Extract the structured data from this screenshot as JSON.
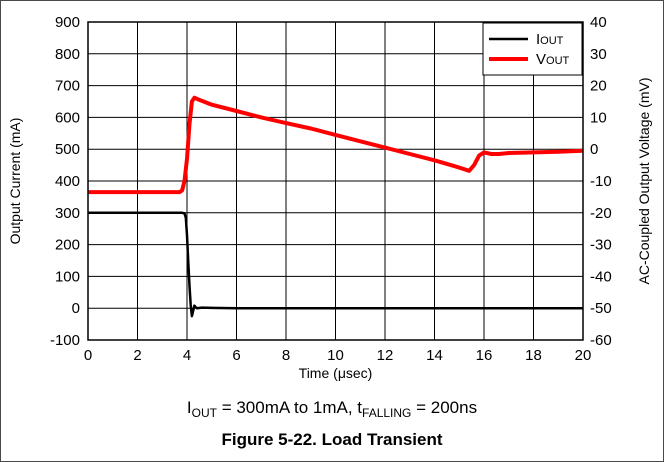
{
  "chart_data": {
    "type": "line",
    "xlabel_parts": [
      "Time (",
      "μ",
      "sec)"
    ],
    "ylabel_left": "Output Current (mA)",
    "ylabel_right": "AC-Coupled Output Voltage (mV)",
    "xlim": [
      0,
      20
    ],
    "ylim_left": [
      -100,
      900
    ],
    "ylim_right": [
      -60,
      40
    ],
    "xticks": [
      0,
      2,
      4,
      6,
      8,
      10,
      12,
      14,
      16,
      18,
      20
    ],
    "yticks_left": [
      -100,
      0,
      100,
      200,
      300,
      400,
      500,
      600,
      700,
      800,
      900
    ],
    "yticks_right": [
      -60,
      -50,
      -40,
      -30,
      -20,
      -10,
      0,
      10,
      20,
      30,
      40
    ],
    "grid": true,
    "legend": {
      "placement": "top-right"
    },
    "series": [
      {
        "name_base": "I",
        "name_sub": "OUT",
        "color": "#000000",
        "axis": "left",
        "x": [
          0,
          0.5,
          1,
          2,
          3,
          3.8,
          3.9,
          3.95,
          4.0,
          4.05,
          4.1,
          4.15,
          4.2,
          4.25,
          4.3,
          4.35,
          4.4,
          4.6,
          5,
          6,
          8,
          10,
          12,
          14,
          16,
          18,
          20
        ],
        "y": [
          300,
          300,
          300,
          300,
          300,
          300,
          298,
          285,
          230,
          150,
          70,
          10,
          -25,
          -8,
          8,
          3,
          0,
          2,
          1,
          0,
          0,
          0,
          0,
          0,
          0,
          0,
          0
        ]
      },
      {
        "name_base": "V",
        "name_sub": "OUT",
        "color": "#ff0000",
        "axis": "right",
        "x": [
          0,
          1,
          2,
          3,
          3.7,
          3.8,
          3.9,
          4.0,
          4.1,
          4.2,
          4.3,
          4.5,
          5,
          6,
          7,
          8,
          9,
          10,
          11,
          12,
          13,
          14,
          15,
          15.4,
          15.6,
          15.8,
          16,
          16.3,
          16.6,
          17,
          18,
          19,
          20
        ],
        "y": [
          -13.5,
          -13.5,
          -13.5,
          -13.5,
          -13.5,
          -13,
          -10,
          -3,
          8,
          15,
          16.2,
          15.5,
          14,
          12,
          10,
          8.2,
          6.5,
          4.5,
          2.5,
          0.5,
          -1.5,
          -3.5,
          -5.8,
          -6.8,
          -5,
          -2,
          -1,
          -1.5,
          -1.5,
          -1.2,
          -1,
          -0.8,
          -0.5
        ]
      }
    ]
  },
  "caption": {
    "cond_I": "I",
    "cond_I_sub": "OUT",
    "cond_mid": " = 300mA to 1mA, t",
    "cond_t_sub": "FALLING",
    "cond_end": " = 200ns",
    "figure": "Figure 5-22. Load Transient"
  }
}
